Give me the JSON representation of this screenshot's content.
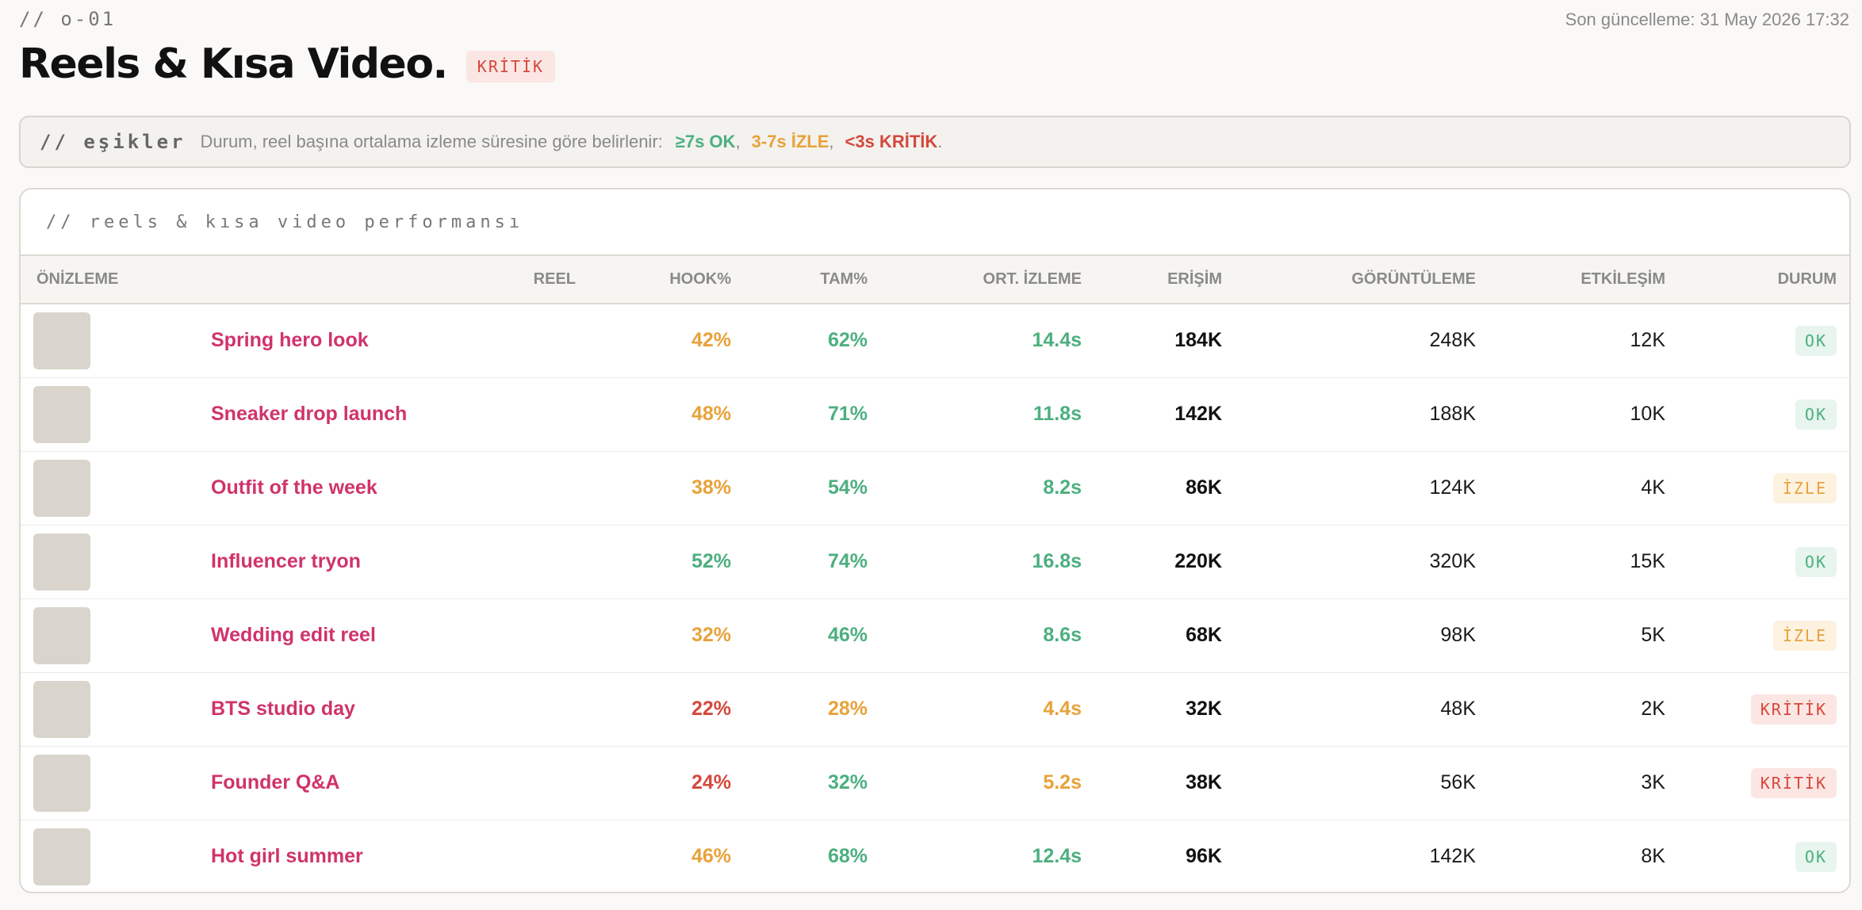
{
  "header": {
    "crumb": "// o-01",
    "updated": "Son güncelleme: 31 May 2026 17:32",
    "title": "Reels & Kısa Video.",
    "status_badge": "KRİTİK"
  },
  "thresholds": {
    "tag": "// eşikler",
    "text": "Durum, reel başına ortalama izleme süresine göre belirlenir:",
    "ok": "≥7s OK",
    "watch": "3-7s İZLE",
    "crit": "<3s KRİTİK",
    "comma": ",",
    "period": "."
  },
  "panel": {
    "title": "// reels & kısa video performansı",
    "columns": [
      "ÖNİZLEME",
      "REEL",
      "HOOK%",
      "TAM%",
      "ORT. İZLEME",
      "ERİŞİM",
      "GÖRÜNTÜLEME",
      "ETKİLEŞİM",
      "DURUM"
    ],
    "rows": [
      {
        "reel": "Spring hero look",
        "hook": "42%",
        "hook_level": "watch",
        "tam": "62%",
        "tam_level": "ok",
        "watch_time": "14.4s",
        "watch_level": "ok",
        "reach": "184K",
        "views": "248K",
        "engagement": "12K",
        "status": "OK",
        "status_level": "ok"
      },
      {
        "reel": "Sneaker drop launch",
        "hook": "48%",
        "hook_level": "watch",
        "tam": "71%",
        "tam_level": "ok",
        "watch_time": "11.8s",
        "watch_level": "ok",
        "reach": "142K",
        "views": "188K",
        "engagement": "10K",
        "status": "OK",
        "status_level": "ok"
      },
      {
        "reel": "Outfit of the week",
        "hook": "38%",
        "hook_level": "watch",
        "tam": "54%",
        "tam_level": "ok",
        "watch_time": "8.2s",
        "watch_level": "ok",
        "reach": "86K",
        "views": "124K",
        "engagement": "4K",
        "status": "İZLE",
        "status_level": "watch"
      },
      {
        "reel": "Influencer tryon",
        "hook": "52%",
        "hook_level": "ok",
        "tam": "74%",
        "tam_level": "ok",
        "watch_time": "16.8s",
        "watch_level": "ok",
        "reach": "220K",
        "views": "320K",
        "engagement": "15K",
        "status": "OK",
        "status_level": "ok"
      },
      {
        "reel": "Wedding edit reel",
        "hook": "32%",
        "hook_level": "watch",
        "tam": "46%",
        "tam_level": "ok",
        "watch_time": "8.6s",
        "watch_level": "ok",
        "reach": "68K",
        "views": "98K",
        "engagement": "5K",
        "status": "İZLE",
        "status_level": "watch"
      },
      {
        "reel": "BTS studio day",
        "hook": "22%",
        "hook_level": "crit",
        "tam": "28%",
        "tam_level": "watch",
        "watch_time": "4.4s",
        "watch_level": "watch",
        "reach": "32K",
        "views": "48K",
        "engagement": "2K",
        "status": "KRİTİK",
        "status_level": "crit"
      },
      {
        "reel": "Founder Q&A",
        "hook": "24%",
        "hook_level": "crit",
        "tam": "32%",
        "tam_level": "ok",
        "watch_time": "5.2s",
        "watch_level": "watch",
        "reach": "38K",
        "views": "56K",
        "engagement": "3K",
        "status": "KRİTİK",
        "status_level": "crit"
      },
      {
        "reel": "Hot girl summer",
        "hook": "46%",
        "hook_level": "watch",
        "tam": "68%",
        "tam_level": "ok",
        "watch_time": "12.4s",
        "watch_level": "ok",
        "reach": "96K",
        "views": "142K",
        "engagement": "8K",
        "status": "OK",
        "status_level": "ok"
      }
    ]
  },
  "colors": {
    "ok": "#4caf7f",
    "watch": "#e8a23a",
    "crit": "#d5483d",
    "reel_link": "#d0336b"
  }
}
